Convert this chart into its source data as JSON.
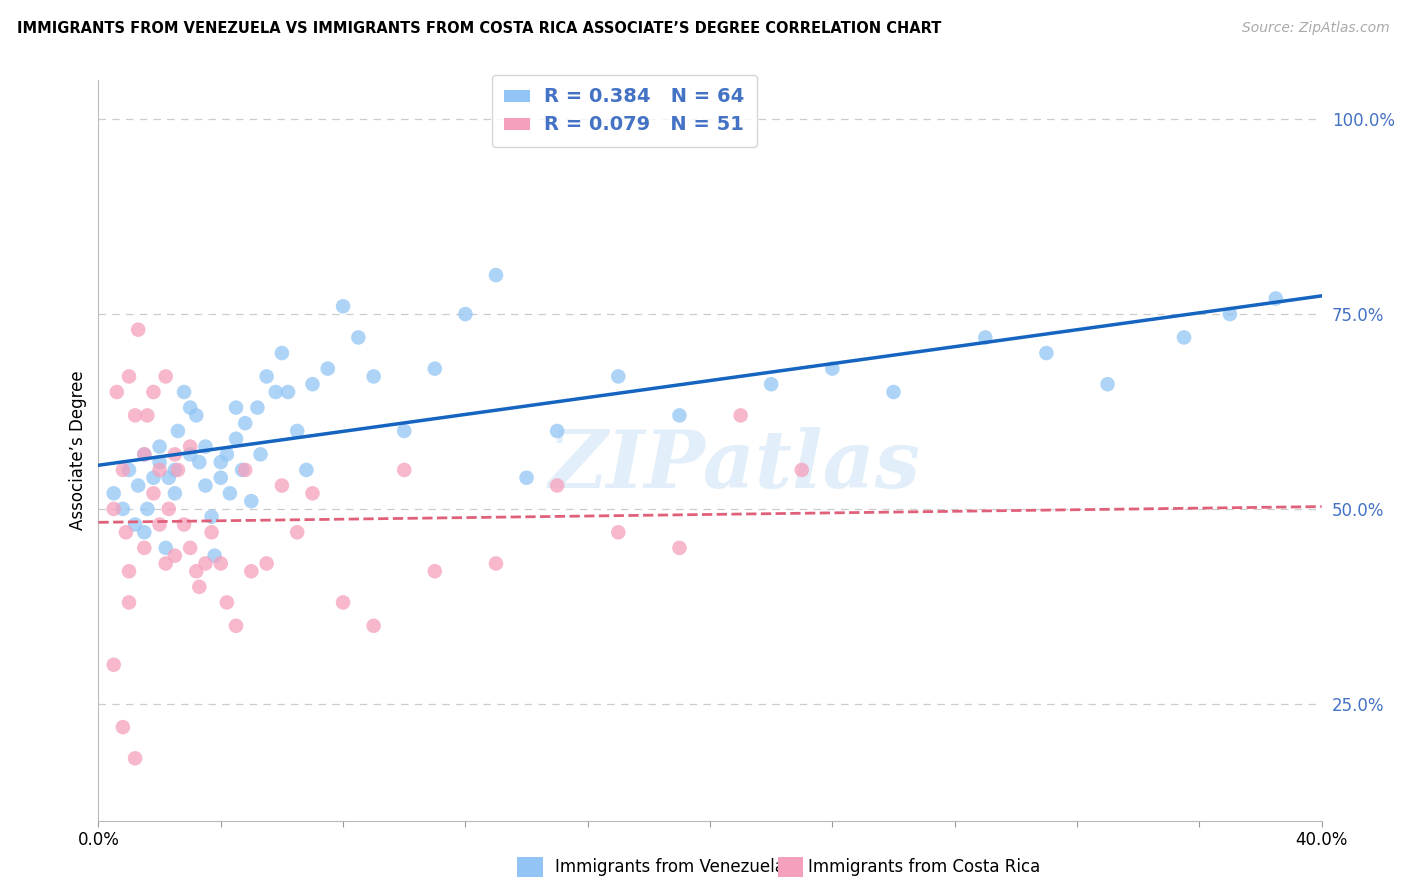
{
  "title": "IMMIGRANTS FROM VENEZUELA VS IMMIGRANTS FROM COSTA RICA ASSOCIATE’S DEGREE CORRELATION CHART",
  "source": "Source: ZipAtlas.com",
  "ylabel": "Associate’s Degree",
  "ytick_labels": [
    "25.0%",
    "50.0%",
    "75.0%",
    "100.0%"
  ],
  "ytick_values": [
    0.25,
    0.5,
    0.75,
    1.0
  ],
  "xlim": [
    0.0,
    0.4
  ],
  "ylim": [
    0.1,
    1.05
  ],
  "xtick_positions": [
    0.0,
    0.04,
    0.08,
    0.12,
    0.16,
    0.2,
    0.24,
    0.28,
    0.32,
    0.36,
    0.4
  ],
  "R_venezuela": 0.384,
  "N_venezuela": 64,
  "R_costa_rica": 0.079,
  "N_costa_rica": 51,
  "color_venezuela": "#92C5F5",
  "color_costa_rica": "#F5A0BC",
  "line_color_venezuela": "#1565C0",
  "line_color_costa_rica": "#E0607A",
  "watermark": "ZIPatlas",
  "legend_label_venezuela": "Immigrants from Venezuela",
  "legend_label_costa_rica": "Immigrants from Costa Rica",
  "venezuela_x": [
    0.005,
    0.008,
    0.01,
    0.012,
    0.013,
    0.015,
    0.015,
    0.016,
    0.018,
    0.02,
    0.02,
    0.022,
    0.023,
    0.025,
    0.025,
    0.026,
    0.028,
    0.03,
    0.03,
    0.032,
    0.033,
    0.035,
    0.035,
    0.037,
    0.038,
    0.04,
    0.04,
    0.042,
    0.043,
    0.045,
    0.045,
    0.047,
    0.048,
    0.05,
    0.052,
    0.053,
    0.055,
    0.058,
    0.06,
    0.062,
    0.065,
    0.068,
    0.07,
    0.075,
    0.08,
    0.085,
    0.09,
    0.1,
    0.11,
    0.12,
    0.13,
    0.14,
    0.15,
    0.17,
    0.19,
    0.22,
    0.24,
    0.26,
    0.29,
    0.31,
    0.33,
    0.355,
    0.37,
    0.385
  ],
  "venezuela_y": [
    0.52,
    0.5,
    0.55,
    0.48,
    0.53,
    0.57,
    0.47,
    0.5,
    0.54,
    0.56,
    0.58,
    0.45,
    0.54,
    0.52,
    0.55,
    0.6,
    0.65,
    0.63,
    0.57,
    0.62,
    0.56,
    0.58,
    0.53,
    0.49,
    0.44,
    0.56,
    0.54,
    0.57,
    0.52,
    0.63,
    0.59,
    0.55,
    0.61,
    0.51,
    0.63,
    0.57,
    0.67,
    0.65,
    0.7,
    0.65,
    0.6,
    0.55,
    0.66,
    0.68,
    0.76,
    0.72,
    0.67,
    0.6,
    0.68,
    0.75,
    0.8,
    0.54,
    0.6,
    0.67,
    0.62,
    0.66,
    0.68,
    0.65,
    0.72,
    0.7,
    0.66,
    0.72,
    0.75,
    0.77
  ],
  "costa_rica_x": [
    0.005,
    0.006,
    0.008,
    0.009,
    0.01,
    0.01,
    0.012,
    0.013,
    0.015,
    0.015,
    0.016,
    0.018,
    0.018,
    0.02,
    0.02,
    0.022,
    0.022,
    0.023,
    0.025,
    0.025,
    0.026,
    0.028,
    0.03,
    0.03,
    0.032,
    0.033,
    0.035,
    0.037,
    0.04,
    0.042,
    0.045,
    0.048,
    0.05,
    0.055,
    0.06,
    0.065,
    0.07,
    0.08,
    0.09,
    0.1,
    0.11,
    0.13,
    0.15,
    0.17,
    0.19,
    0.21,
    0.23,
    0.005,
    0.008,
    0.01,
    0.012
  ],
  "costa_rica_y": [
    0.5,
    0.65,
    0.55,
    0.47,
    0.42,
    0.67,
    0.62,
    0.73,
    0.45,
    0.57,
    0.62,
    0.52,
    0.65,
    0.55,
    0.48,
    0.43,
    0.67,
    0.5,
    0.44,
    0.57,
    0.55,
    0.48,
    0.45,
    0.58,
    0.42,
    0.4,
    0.43,
    0.47,
    0.43,
    0.38,
    0.35,
    0.55,
    0.42,
    0.43,
    0.53,
    0.47,
    0.52,
    0.38,
    0.35,
    0.55,
    0.42,
    0.43,
    0.53,
    0.47,
    0.45,
    0.62,
    0.55,
    0.3,
    0.22,
    0.38,
    0.18
  ]
}
